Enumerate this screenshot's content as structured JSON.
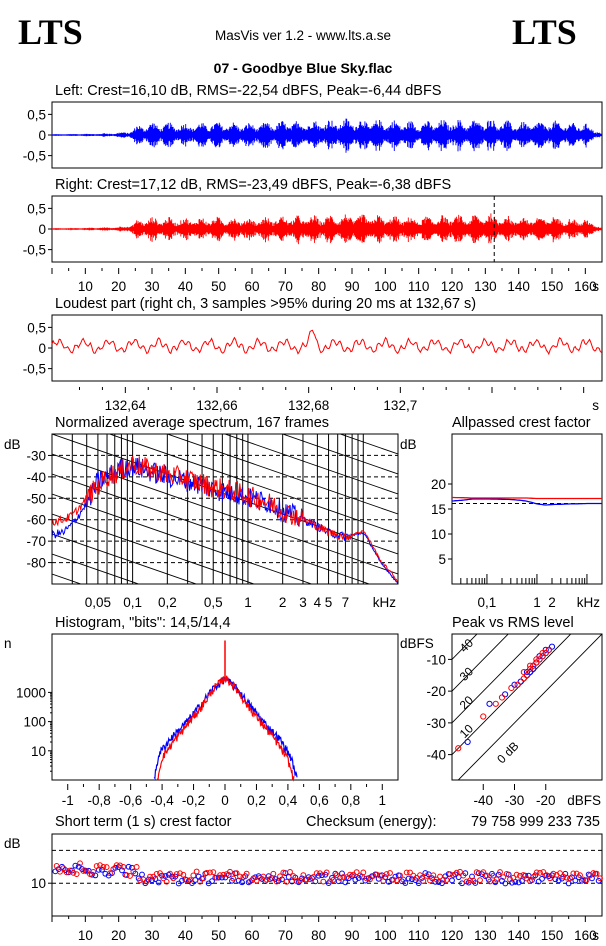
{
  "header": {
    "logo_left": "LTS",
    "logo_right": "LTS",
    "app_title": "MasVis ver 1.2 - www.lts.a.se",
    "file_name": "07 - Goodbye Blue Sky.flac"
  },
  "colors": {
    "left": "#0000ff",
    "right": "#ff0000",
    "frame": "#000000"
  },
  "chart_data": [
    {
      "id": "left-waveform",
      "type": "area",
      "title": "Left: Crest=16,10 dB, RMS=-22,54 dBFS, Peak=-6,44 dBFS",
      "yticks": [
        "0,5",
        "0",
        "-0,5"
      ],
      "ylim": [
        -0.8,
        0.8
      ],
      "xlim": [
        0,
        165
      ],
      "series": [
        {
          "name": "Left",
          "color": "#0000ff"
        }
      ],
      "envelope_time_s": [
        0,
        14,
        20,
        24,
        26,
        30,
        40,
        50,
        60,
        70,
        80,
        90,
        100,
        110,
        120,
        125,
        130,
        140,
        150,
        155,
        160,
        164,
        165
      ],
      "envelope_amp": [
        0.02,
        0.04,
        0.06,
        0.12,
        0.28,
        0.32,
        0.3,
        0.33,
        0.3,
        0.36,
        0.38,
        0.42,
        0.38,
        0.34,
        0.4,
        0.36,
        0.44,
        0.32,
        0.36,
        0.32,
        0.3,
        0.1,
        0.02
      ]
    },
    {
      "id": "right-waveform",
      "type": "area",
      "title": "Right: Crest=17,12 dB, RMS=-23,49 dBFS, Peak=-6,38 dBFS",
      "yticks": [
        "0,5",
        "0",
        "-0,5"
      ],
      "ylim": [
        -0.8,
        0.8
      ],
      "xlim": [
        0,
        165
      ],
      "xticks": [
        10,
        20,
        30,
        40,
        50,
        60,
        70,
        80,
        90,
        100,
        110,
        120,
        130,
        140,
        150,
        160
      ],
      "x_unit": "s",
      "marker_s": 132.67,
      "series": [
        {
          "name": "Right",
          "color": "#ff0000"
        }
      ],
      "envelope_time_s": [
        0,
        14,
        20,
        24,
        26,
        30,
        40,
        50,
        60,
        70,
        80,
        90,
        100,
        110,
        120,
        125,
        130,
        140,
        150,
        155,
        160,
        164,
        165
      ],
      "envelope_amp": [
        0.02,
        0.04,
        0.06,
        0.12,
        0.26,
        0.3,
        0.28,
        0.3,
        0.28,
        0.33,
        0.34,
        0.38,
        0.34,
        0.3,
        0.36,
        0.33,
        0.4,
        0.3,
        0.33,
        0.28,
        0.26,
        0.08,
        0.02
      ]
    },
    {
      "id": "loudest-part",
      "type": "line",
      "title": "Loudest part (right ch, 3 samples >95% during 20 ms at 132,67 s)",
      "yticks": [
        "0,5",
        "0",
        "-0,5"
      ],
      "ylim": [
        -0.8,
        0.8
      ],
      "xlim": [
        132.624,
        132.744
      ],
      "xticks": [
        "132,64",
        "132,66",
        "132,68",
        "132,7"
      ],
      "xtick_values": [
        132.64,
        132.66,
        132.68,
        132.7
      ],
      "x_unit": "s",
      "peak_at_s": 132.681,
      "series": [
        {
          "name": "Right",
          "color": "#ff0000"
        }
      ]
    },
    {
      "id": "spectrum",
      "type": "line",
      "title": "Normalized average spectrum, 167 frames",
      "ylabel": "dB",
      "yticks": [
        -30,
        -40,
        -50,
        -60,
        -70,
        -80
      ],
      "ylim": [
        -90,
        -20
      ],
      "xscale": "log",
      "xlim": [
        0.02,
        20
      ],
      "xticks": [
        "0,05",
        "0,1",
        "0,2",
        "0,5",
        "1",
        "2",
        "3",
        "4",
        "5",
        "7"
      ],
      "xtick_values": [
        0.05,
        0.1,
        0.2,
        0.5,
        1,
        2,
        3,
        4,
        5,
        7
      ],
      "x_unit": "kHz",
      "series": [
        {
          "name": "Left",
          "color": "#0000ff",
          "freq_khz": [
            0.02,
            0.025,
            0.03,
            0.04,
            0.05,
            0.06,
            0.08,
            0.1,
            0.15,
            0.2,
            0.3,
            0.5,
            0.8,
            1,
            1.5,
            2,
            3,
            4,
            5,
            7,
            10,
            14,
            20
          ],
          "db": [
            -67,
            -66,
            -62,
            -52,
            -42,
            -40,
            -36,
            -35,
            -38,
            -40,
            -42,
            -46,
            -48,
            -50,
            -52,
            -56,
            -60,
            -63,
            -66,
            -68,
            -66,
            -80,
            -90
          ]
        },
        {
          "name": "Right",
          "color": "#ff0000",
          "freq_khz": [
            0.02,
            0.025,
            0.03,
            0.04,
            0.05,
            0.06,
            0.08,
            0.1,
            0.15,
            0.2,
            0.3,
            0.5,
            0.8,
            1,
            1.5,
            2,
            3,
            4,
            5,
            7,
            10,
            14,
            20
          ],
          "db": [
            -61,
            -60,
            -58,
            -50,
            -44,
            -40,
            -37,
            -34,
            -37,
            -39,
            -41,
            -45,
            -47,
            -49,
            -52,
            -56,
            -60,
            -63,
            -66,
            -68,
            -65,
            -79,
            -89
          ]
        }
      ]
    },
    {
      "id": "allpassed-crest",
      "type": "line",
      "title": "Allpassed crest factor",
      "ylabel": "dB",
      "yticks": [
        20,
        15,
        10,
        5
      ],
      "ylim": [
        0,
        30
      ],
      "xscale": "log",
      "xlim": [
        0.02,
        20
      ],
      "xticks": [
        "0,1",
        "1",
        "2"
      ],
      "xtick_values": [
        0.1,
        1,
        2
      ],
      "x_unit": "kHz",
      "reference_db": 16.1,
      "series": [
        {
          "name": "Left",
          "color": "#0000ff",
          "freq_khz": [
            0.02,
            0.05,
            0.1,
            0.3,
            0.6,
            1,
            1.5,
            2,
            4,
            10,
            20
          ],
          "db": [
            16.6,
            17.0,
            17.0,
            16.9,
            16.6,
            16.0,
            15.8,
            15.9,
            16.0,
            16.1,
            16.1
          ]
        },
        {
          "name": "Right",
          "color": "#ff0000",
          "freq_khz": [
            0.02,
            0.05,
            0.1,
            0.3,
            0.6,
            1,
            2,
            4,
            10,
            20
          ],
          "db": [
            17.3,
            17.2,
            17.2,
            17.2,
            17.2,
            17.1,
            17.1,
            17.1,
            17.1,
            17.1
          ]
        }
      ]
    },
    {
      "id": "histogram",
      "type": "line",
      "title": "Histogram, \"bits\": 14,5/14,4",
      "ylabel": "n",
      "yscale": "log",
      "yticks": [
        "1000",
        "100",
        "10"
      ],
      "ytick_values": [
        1000,
        100,
        10
      ],
      "ylim": [
        1,
        100000
      ],
      "xlim": [
        -1.1,
        1.1
      ],
      "xticks": [
        "-1",
        "-0,8",
        "-0,6",
        "-0,4",
        "-0,2",
        "0",
        "0,2",
        "0,4",
        "0,6",
        "0,8",
        "1"
      ],
      "xtick_values": [
        -1,
        -0.8,
        -0.6,
        -0.4,
        -0.2,
        0,
        0.2,
        0.4,
        0.6,
        0.8,
        1
      ],
      "series": [
        {
          "name": "Left",
          "color": "#0000ff",
          "x": [
            -0.45,
            -0.42,
            -0.35,
            -0.25,
            -0.15,
            -0.08,
            0,
            0.08,
            0.15,
            0.25,
            0.35,
            0.42,
            0.46
          ],
          "n": [
            1,
            8,
            25,
            90,
            400,
            1300,
            3000,
            1300,
            420,
            90,
            25,
            6,
            1
          ]
        },
        {
          "name": "Right",
          "color": "#ff0000",
          "x": [
            -0.43,
            -0.4,
            -0.33,
            -0.24,
            -0.14,
            -0.07,
            0,
            0.07,
            0.14,
            0.24,
            0.33,
            0.4,
            0.44
          ],
          "n": [
            1,
            6,
            20,
            80,
            380,
            1400,
            3300,
            1400,
            380,
            80,
            20,
            5,
            1
          ]
        }
      ],
      "center_spike_n": 60000
    },
    {
      "id": "peak-vs-rms",
      "type": "scatter",
      "title": "Peak vs RMS level",
      "ylabel": "dBFS",
      "xlabel": "dBFS",
      "yticks": [
        -10,
        -20,
        -30,
        -40
      ],
      "ylim": [
        -48,
        -2
      ],
      "xticks": [
        -40,
        -30,
        -20
      ],
      "xlim": [
        -50,
        -2
      ],
      "crest_lines_db": [
        0,
        10,
        20,
        30,
        40
      ],
      "crest_labels": [
        "0 dB",
        "10",
        "20",
        "30",
        "40"
      ],
      "series": [
        {
          "name": "Left",
          "color": "#0000ff",
          "points": [
            [
              -45,
              -36
            ],
            [
              -38,
              -24
            ],
            [
              -33,
              -21
            ],
            [
              -30,
              -18
            ],
            [
              -28,
              -17
            ],
            [
              -26,
              -15
            ],
            [
              -25,
              -14
            ],
            [
              -24,
              -13
            ],
            [
              -23,
              -11
            ],
            [
              -22,
              -10
            ],
            [
              -21,
              -9
            ],
            [
              -20,
              -8
            ],
            [
              -19,
              -7
            ],
            [
              -18,
              -6
            ],
            [
              -24,
              -12
            ],
            [
              -26,
              -14
            ],
            [
              -22,
              -9
            ],
            [
              -20,
              -7
            ]
          ]
        },
        {
          "name": "Right",
          "color": "#ff0000",
          "points": [
            [
              -48,
              -38
            ],
            [
              -40,
              -28
            ],
            [
              -36,
              -24
            ],
            [
              -34,
              -22
            ],
            [
              -31,
              -19
            ],
            [
              -29,
              -18
            ],
            [
              -27,
              -16
            ],
            [
              -26,
              -15
            ],
            [
              -25,
              -13
            ],
            [
              -24,
              -12
            ],
            [
              -23,
              -11
            ],
            [
              -22,
              -10
            ],
            [
              -21,
              -9
            ],
            [
              -20,
              -8
            ],
            [
              -19,
              -7
            ],
            [
              -27,
              -14
            ],
            [
              -25,
              -12
            ],
            [
              -23,
              -10
            ],
            [
              -21,
              -8
            ]
          ]
        }
      ]
    },
    {
      "id": "short-term-crest",
      "type": "scatter",
      "title": "Short term (1 s) crest factor",
      "checksum_label": "Checksum (energy):",
      "checksum_value": "79 758 999 233 735",
      "ylabel": "dB",
      "yticks": [
        10
      ],
      "ylim": [
        0,
        25
      ],
      "xlim": [
        0,
        165
      ],
      "xticks": [
        10,
        20,
        30,
        40,
        50,
        60,
        70,
        80,
        90,
        100,
        110,
        120,
        130,
        140,
        150,
        160
      ],
      "x_unit": "s",
      "reference_db": [
        10,
        20
      ],
      "series": [
        {
          "name": "Left",
          "color": "#0000ff",
          "mean_db": 11.5
        },
        {
          "name": "Right",
          "color": "#ff0000",
          "mean_db": 12.0
        }
      ]
    }
  ]
}
